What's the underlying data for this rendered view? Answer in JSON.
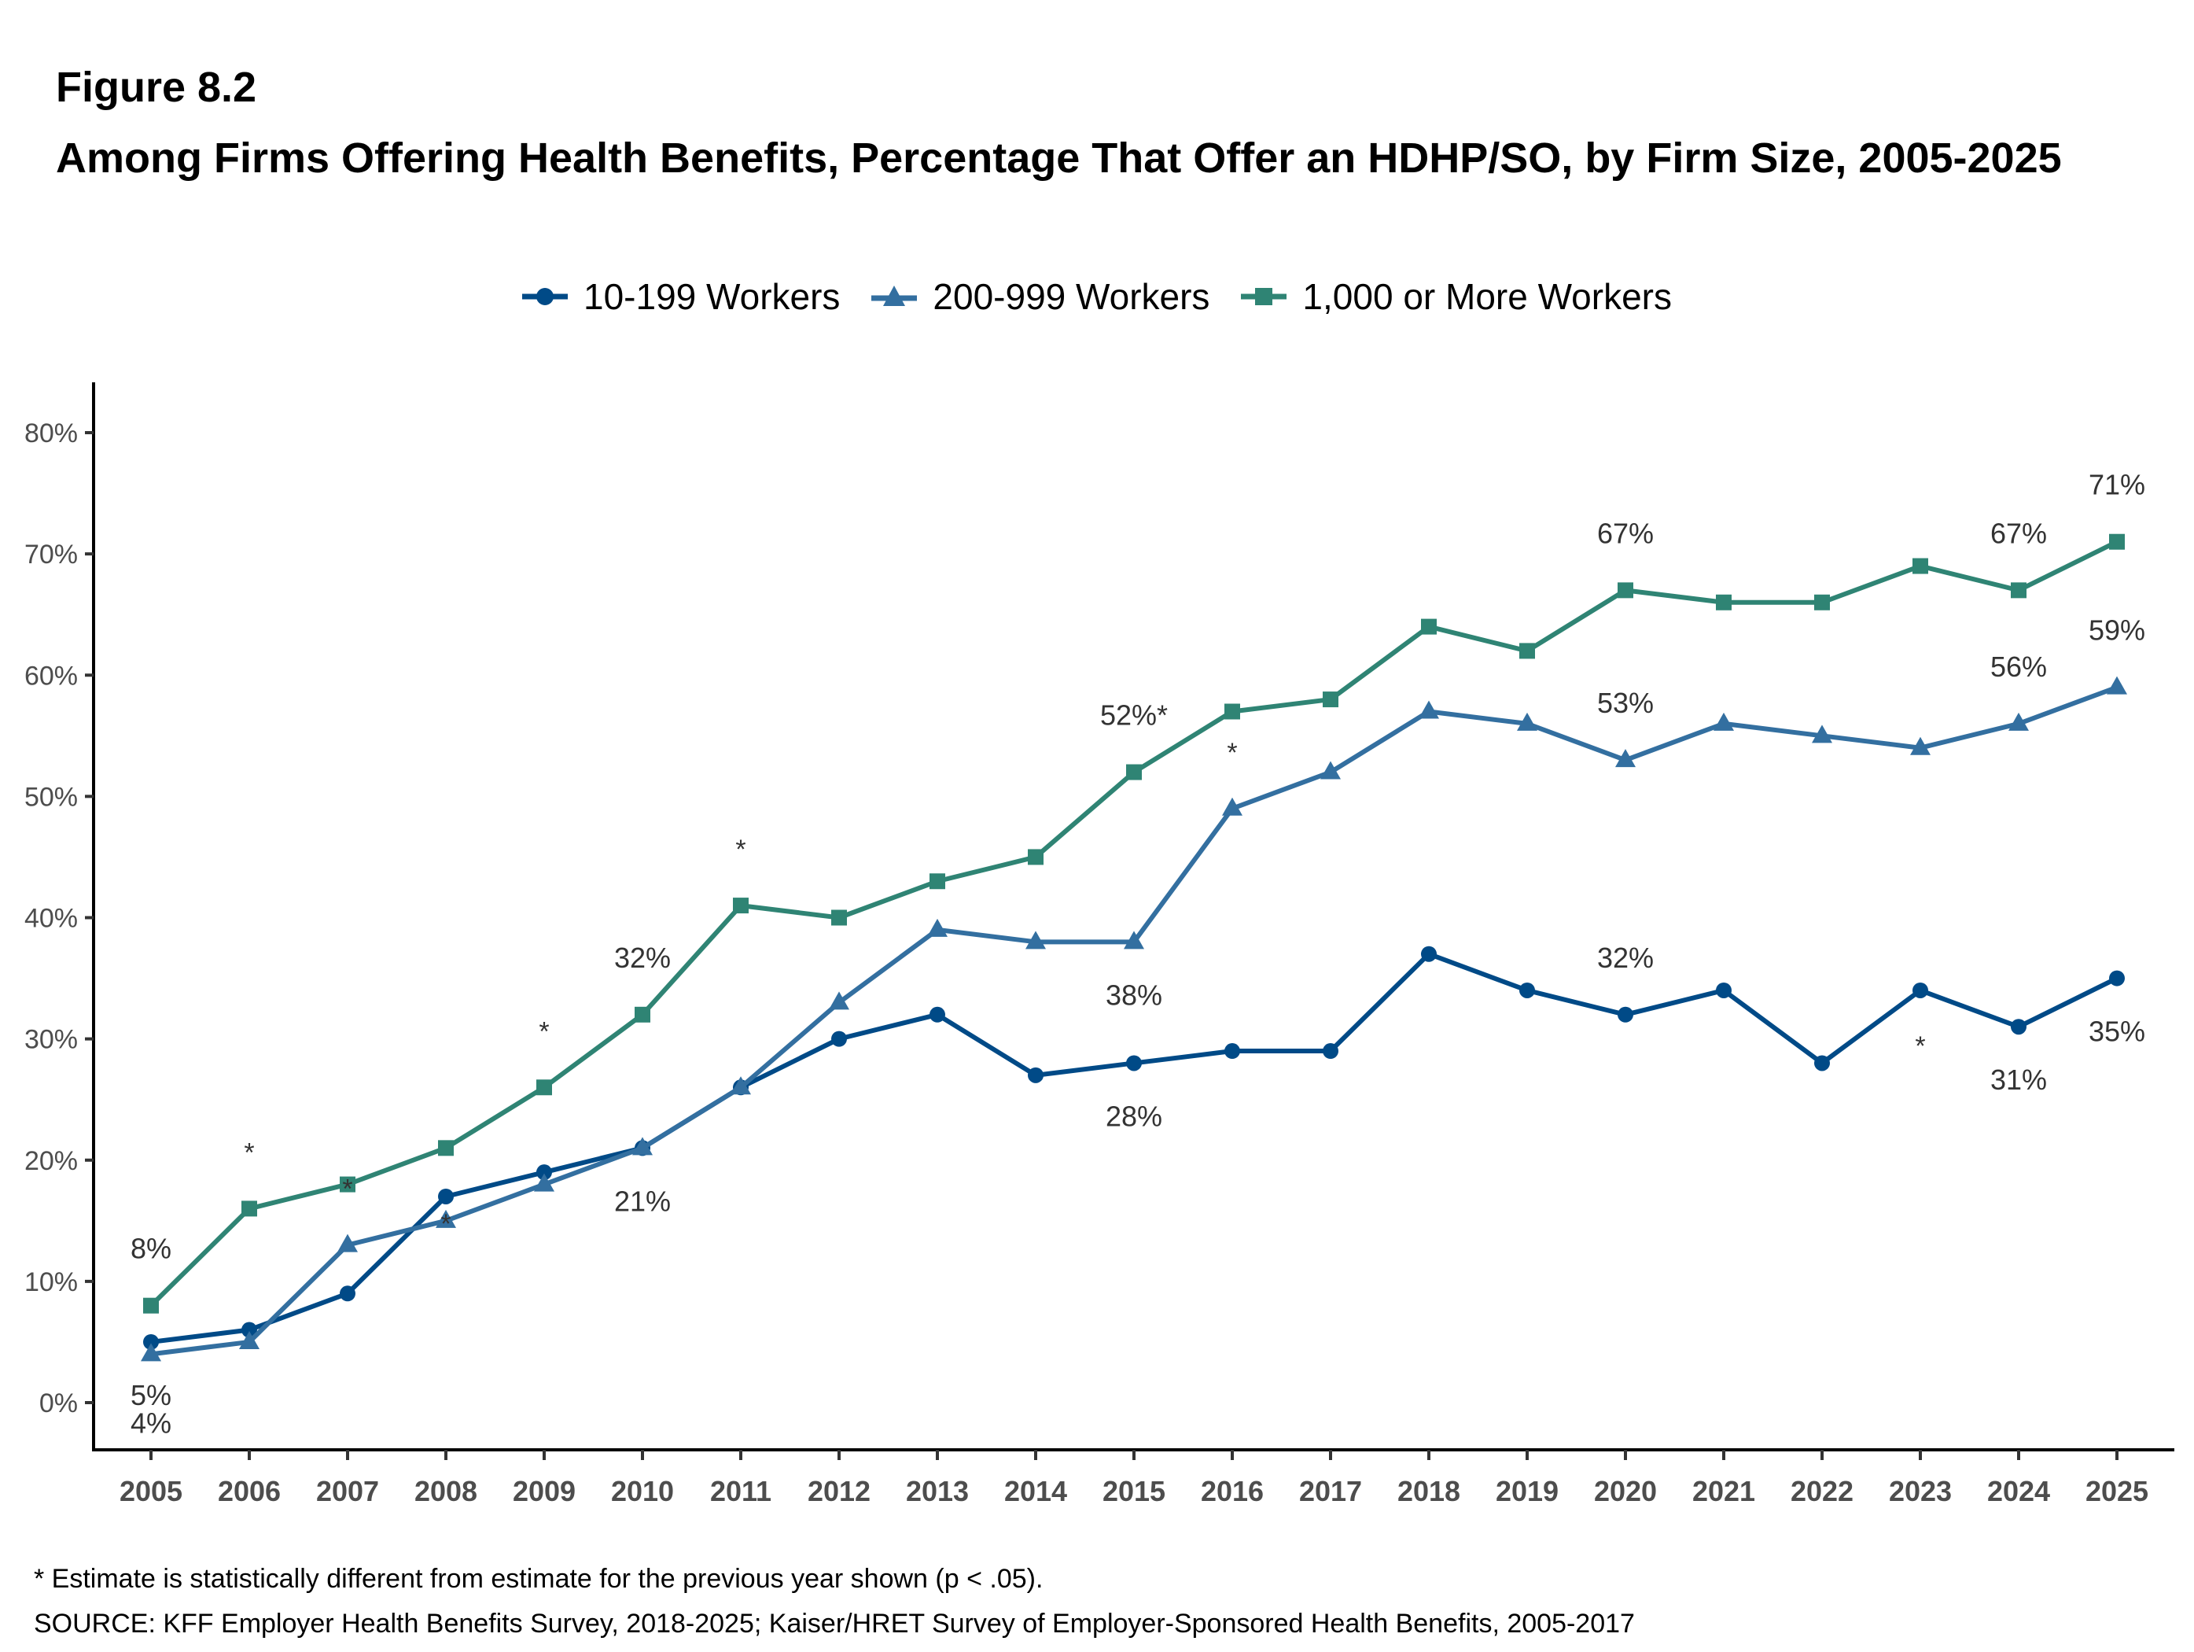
{
  "header": {
    "figure_label": "Figure 8.2",
    "title": "Among Firms Offering Health Benefits, Percentage That Offer an HDHP/SO, by Firm Size, 2005-2025"
  },
  "footer": {
    "note": "* Estimate is statistically different from estimate for the previous year shown (p < .05).",
    "source": "SOURCE: KFF Employer Health Benefits Survey, 2018-2025; Kaiser/HRET Survey of Employer-Sponsored Health Benefits, 2005-2017"
  },
  "chart_data": {
    "type": "line",
    "title": "Among Firms Offering Health Benefits, Percentage That Offer an HDHP/SO, by Firm Size, 2005-2025",
    "xlabel": "",
    "ylabel": "",
    "ylim": [
      0,
      80
    ],
    "y_ticks": [
      "0%",
      "10%",
      "20%",
      "30%",
      "40%",
      "50%",
      "60%",
      "70%",
      "80%"
    ],
    "y_tick_values": [
      0,
      10,
      20,
      30,
      40,
      50,
      60,
      70,
      80
    ],
    "grid": false,
    "legend_position": "top",
    "x": [
      "2005",
      "2006",
      "2007",
      "2008",
      "2009",
      "2010",
      "2011",
      "2012",
      "2013",
      "2014",
      "2015",
      "2016",
      "2017",
      "2018",
      "2019",
      "2020",
      "2021",
      "2022",
      "2023",
      "2024",
      "2025"
    ],
    "series": [
      {
        "name": "10-199 Workers",
        "color": "#004A87",
        "marker": "circle",
        "values": [
          5,
          6,
          9,
          17,
          19,
          21,
          26,
          30,
          32,
          27,
          28,
          29,
          29,
          37,
          34,
          32,
          34,
          28,
          34,
          31,
          35
        ],
        "significant": [
          "2023"
        ]
      },
      {
        "name": "200-999 Workers",
        "color": "#336FA0",
        "marker": "triangle",
        "values": [
          4,
          5,
          13,
          15,
          18,
          21,
          26,
          33,
          39,
          38,
          38,
          49,
          52,
          57,
          56,
          53,
          56,
          55,
          54,
          56,
          59
        ],
        "significant": [
          "2007",
          "2008",
          "2016"
        ]
      },
      {
        "name": "1,000 or More Workers",
        "color": "#2F8474",
        "marker": "square",
        "values": [
          8,
          16,
          18,
          21,
          26,
          32,
          41,
          40,
          43,
          45,
          52,
          57,
          58,
          64,
          62,
          67,
          66,
          66,
          69,
          67,
          71
        ],
        "significant": [
          "2006",
          "2009",
          "2011",
          "2015"
        ]
      }
    ],
    "data_labels": [
      {
        "series": 2,
        "x": "2005",
        "text": "8%",
        "pos": "above"
      },
      {
        "series": 0,
        "x": "2005",
        "text": "5%",
        "pos": "below"
      },
      {
        "series": 1,
        "x": "2005",
        "text": "4%",
        "pos": "below2"
      },
      {
        "series": 2,
        "x": "2010",
        "text": "32%",
        "pos": "above"
      },
      {
        "series": 1,
        "x": "2010",
        "text": "21%",
        "pos": "below"
      },
      {
        "series": 2,
        "x": "2015",
        "text": "52%*",
        "pos": "above"
      },
      {
        "series": 1,
        "x": "2015",
        "text": "38%",
        "pos": "below"
      },
      {
        "series": 0,
        "x": "2015",
        "text": "28%",
        "pos": "below"
      },
      {
        "series": 2,
        "x": "2020",
        "text": "67%",
        "pos": "above"
      },
      {
        "series": 1,
        "x": "2020",
        "text": "53%",
        "pos": "above"
      },
      {
        "series": 0,
        "x": "2020",
        "text": "32%",
        "pos": "above"
      },
      {
        "series": 2,
        "x": "2024",
        "text": "67%",
        "pos": "above"
      },
      {
        "series": 1,
        "x": "2024",
        "text": "56%",
        "pos": "above"
      },
      {
        "series": 0,
        "x": "2024",
        "text": "31%",
        "pos": "below"
      },
      {
        "series": 2,
        "x": "2025",
        "text": "71%",
        "pos": "above"
      },
      {
        "series": 1,
        "x": "2025",
        "text": "59%",
        "pos": "above"
      },
      {
        "series": 0,
        "x": "2025",
        "text": "35%",
        "pos": "below"
      }
    ],
    "significance_markers": [
      {
        "series": 2,
        "x": "2006",
        "text": "*"
      },
      {
        "series": 1,
        "x": "2007",
        "text": "*"
      },
      {
        "series": 1,
        "x": "2008",
        "text": "*"
      },
      {
        "series": 2,
        "x": "2009",
        "text": "*"
      },
      {
        "series": 2,
        "x": "2011",
        "text": "*"
      },
      {
        "series": 1,
        "x": "2016",
        "text": "*"
      },
      {
        "series": 0,
        "x": "2023",
        "text": "*"
      }
    ]
  }
}
